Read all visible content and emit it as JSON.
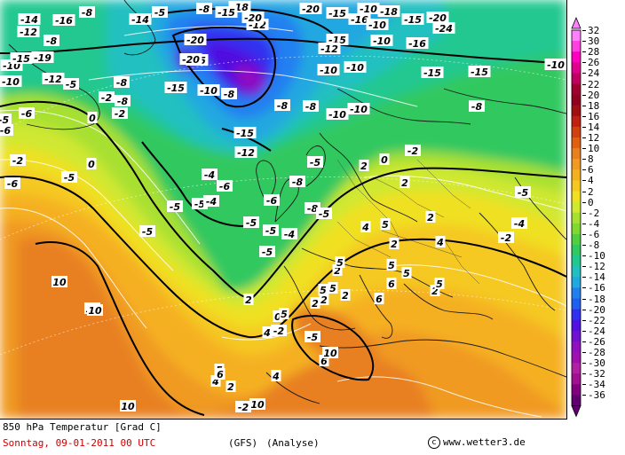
{
  "map": {
    "title_line1": "850 hPa Temperatur [Grad C]",
    "date_line": "Sonntag, 09-01-2011  00 UTC",
    "model": "(GFS)",
    "run_type": "(Analyse)",
    "copyright_glyph": "c",
    "source": "www.wetter3.de",
    "date_color": "#cc0000",
    "land_border_color": "#1a1a1a",
    "isoline_color": "#000000"
  },
  "colorbar": {
    "levels": [
      {
        "label": "32",
        "color": "#ff80ff"
      },
      {
        "label": "30",
        "color": "#ff40e0"
      },
      {
        "label": "28",
        "color": "#ff00c0"
      },
      {
        "label": "26",
        "color": "#e00090"
      },
      {
        "label": "24",
        "color": "#c00060"
      },
      {
        "label": "22",
        "color": "#a00030"
      },
      {
        "label": "20",
        "color": "#900020"
      },
      {
        "label": "18",
        "color": "#a01010"
      },
      {
        "label": "16",
        "color": "#c02010"
      },
      {
        "label": "14",
        "color": "#d04010"
      },
      {
        "label": "12",
        "color": "#e06010"
      },
      {
        "label": "10",
        "color": "#e88020"
      },
      {
        "label": "8",
        "color": "#f09a20"
      },
      {
        "label": "6",
        "color": "#f5b020"
      },
      {
        "label": "4",
        "color": "#f5c820"
      },
      {
        "label": "2",
        "color": "#f0e020"
      },
      {
        "label": "0",
        "color": "#d0e830"
      },
      {
        "label": "-2",
        "color": "#a8e030"
      },
      {
        "label": "-4",
        "color": "#80d830"
      },
      {
        "label": "-6",
        "color": "#50d040"
      },
      {
        "label": "-8",
        "color": "#30c860"
      },
      {
        "label": "-10",
        "color": "#20c890"
      },
      {
        "label": "-12",
        "color": "#20c0c0"
      },
      {
        "label": "-14",
        "color": "#20a8e0"
      },
      {
        "label": "-16",
        "color": "#2080f0"
      },
      {
        "label": "-18",
        "color": "#2060f0"
      },
      {
        "label": "-20",
        "color": "#3030f0"
      },
      {
        "label": "-22",
        "color": "#5010e0"
      },
      {
        "label": "-24",
        "color": "#7010d0"
      },
      {
        "label": "-26",
        "color": "#9010c0"
      },
      {
        "label": "-28",
        "color": "#a010b0"
      },
      {
        "label": "-30",
        "color": "#b020a0"
      },
      {
        "label": "-32",
        "color": "#a01090"
      },
      {
        "label": "-34",
        "color": "#800080"
      },
      {
        "label": "-36",
        "color": "#600070"
      }
    ]
  },
  "isotherm_labels": [
    "-14",
    "-8",
    "-5",
    "-18",
    "-20",
    "-8",
    "-15",
    "-12",
    "-20",
    "-10",
    "-15",
    "-16",
    "-18",
    "-15",
    "-20",
    "-10",
    "-8",
    "-15",
    "-19",
    "-12",
    "-16",
    "-14",
    "-15",
    "-10",
    "-24",
    "-20",
    "-25",
    "-12",
    "-10",
    "-15",
    "-16",
    "-10",
    "-15",
    "-10",
    "-10",
    "-10",
    "-8",
    "-12",
    "-20",
    "-8",
    "-15",
    "-8",
    "-5",
    "-10",
    "-10",
    "-8",
    "0",
    "-2",
    "-6",
    "-15",
    "-12",
    "-8",
    "-10",
    "-8",
    "-5",
    "-6",
    "-2",
    "-2",
    "-5",
    "-6",
    "-5",
    "-5",
    "-4",
    "0",
    "-5",
    "-6",
    "-5",
    "-8",
    "-6",
    "-4",
    "-5",
    "-8",
    "-5",
    "-5",
    "-4",
    "-5",
    "-2",
    "2",
    "0",
    "-5",
    "2",
    "5",
    "4",
    "2",
    "5",
    "2",
    "4",
    "6",
    "5",
    "2",
    "5",
    "-4",
    "-2",
    "10",
    "10",
    "5",
    "5",
    "6",
    "2",
    "2",
    "4",
    "-2",
    "4",
    "0",
    "2",
    "5",
    "6",
    "2",
    "10",
    "10",
    "10",
    "5",
    "2",
    "10",
    "5",
    "4",
    "6",
    "2",
    "-2",
    "-5"
  ]
}
